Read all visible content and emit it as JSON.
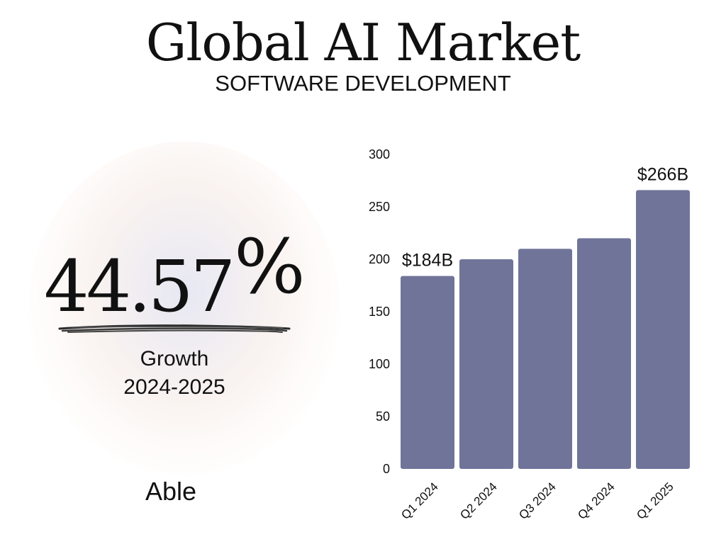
{
  "title": "Global AI Market",
  "subtitle": "SOFTWARE DEVELOPMENT",
  "stat": {
    "value": "44.57",
    "unit": "%",
    "label": "Growth",
    "period": "2024-2025"
  },
  "brand": {
    "logo_text": "Able"
  },
  "colors": {
    "bar": "#707499",
    "text": "#111111",
    "background": "#ffffff"
  },
  "chart_data": {
    "type": "bar",
    "title": "",
    "xlabel": "",
    "ylabel": "",
    "categories": [
      "Q1 2024",
      "Q2 2024",
      "Q3 2024",
      "Q4 2024",
      "Q1 2025"
    ],
    "values": [
      184,
      200,
      210,
      220,
      266
    ],
    "ylim": [
      0,
      300
    ],
    "yticks": [
      0,
      50,
      100,
      150,
      200,
      250,
      300
    ],
    "data_labels": [
      "$184B",
      "",
      "",
      "",
      "$266B"
    ],
    "grid": false,
    "legend": "none"
  }
}
